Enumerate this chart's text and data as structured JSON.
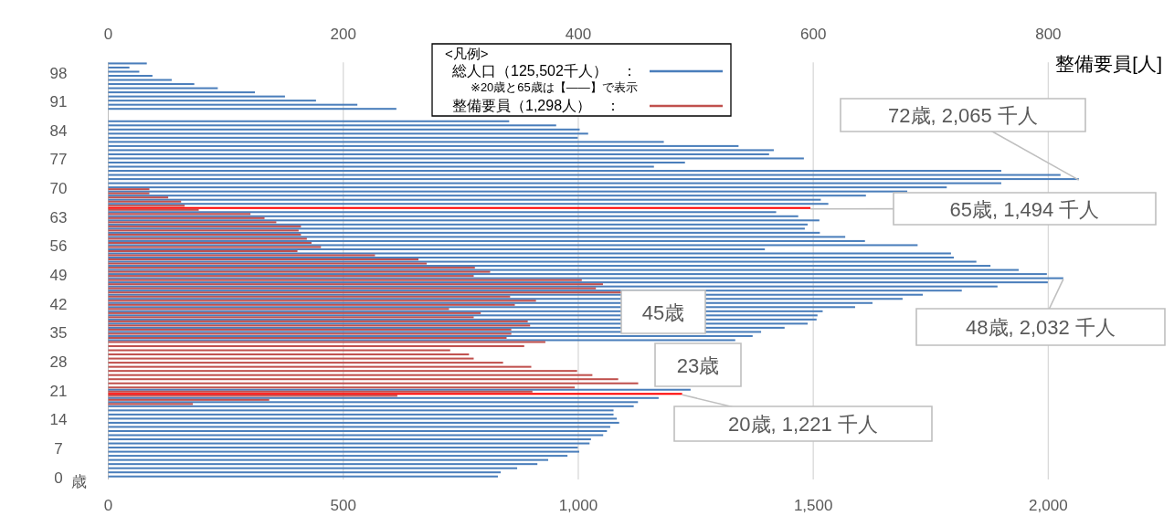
{
  "chart_data": {
    "type": "bar",
    "orientation": "horizontal",
    "x": [
      0,
      1,
      2,
      3,
      4,
      5,
      6,
      7,
      8,
      9,
      10,
      11,
      12,
      13,
      14,
      15,
      16,
      17,
      18,
      19,
      20,
      21,
      22,
      23,
      24,
      25,
      26,
      27,
      28,
      29,
      30,
      31,
      32,
      33,
      34,
      35,
      36,
      37,
      38,
      39,
      40,
      41,
      42,
      43,
      44,
      45,
      46,
      47,
      48,
      49,
      50,
      51,
      52,
      53,
      54,
      55,
      56,
      57,
      58,
      59,
      60,
      61,
      62,
      63,
      64,
      65,
      66,
      67,
      68,
      69,
      70,
      71,
      72,
      73,
      74,
      75,
      76,
      77,
      78,
      79,
      80,
      81,
      82,
      83,
      84,
      85,
      86,
      87,
      88,
      89,
      90,
      91,
      92,
      93,
      94,
      95,
      96,
      97,
      98,
      99,
      100
    ],
    "ylim": [
      -0.5,
      100.5
    ],
    "yticks": [
      0,
      7,
      14,
      21,
      28,
      35,
      42,
      49,
      56,
      63,
      70,
      77,
      84,
      91,
      98
    ],
    "ylabel": "歳",
    "xlim": [
      0,
      2250
    ],
    "xticks": [
      0,
      500,
      {
        "value": 1000,
        "label": "1,000"
      },
      {
        "value": 1500,
        "label": "1,500"
      },
      {
        "value": 2000,
        "label": "2,000"
      }
    ],
    "x2lim": [
      0,
      900
    ],
    "x2ticks": [
      0,
      200,
      400,
      600,
      800
    ],
    "x2label": "整備要員[人]",
    "grid": "x",
    "legend": "top",
    "legend_title": "<凡例>",
    "series": [
      {
        "name": "総人口（125,502千人）　：",
        "color": "#4a7ebb",
        "values": [
          829,
          835,
          870,
          913,
          936,
          977,
          1002,
          999,
          1024,
          1027,
          1053,
          1061,
          1068,
          1087,
          1082,
          1075,
          1075,
          1118,
          1127,
          1171,
          1221,
          1239,
          null,
          null,
          null,
          null,
          null,
          null,
          null,
          null,
          null,
          null,
          null,
          1334,
          1371,
          1389,
          1439,
          1488,
          1507,
          1509,
          1520,
          1589,
          1626,
          1690,
          1733,
          1816,
          1892,
          1999,
          2032,
          1997,
          1937,
          1877,
          1847,
          1799,
          1793,
          1397,
          1722,
          1610,
          1568,
          1514,
          1482,
          1488,
          1513,
          1468,
          1421,
          1494,
          1532,
          1516,
          1612,
          1700,
          1784,
          1900,
          2065,
          2026,
          1900,
          1161,
          1227,
          1480,
          1406,
          1416,
          1341,
          1182,
          999,
          1021,
          1003,
          953,
          853,
          null,
          null,
          613,
          530,
          442,
          376,
          312,
          233,
          183,
          135,
          94,
          66,
          45,
          82
        ],
        "colors": [
          "#4a7ebb",
          "#4a7ebb",
          "#4a7ebb",
          "#4a7ebb",
          "#4a7ebb",
          "#4a7ebb",
          "#4a7ebb",
          "#4a7ebb",
          "#4a7ebb",
          "#4a7ebb",
          "#4a7ebb",
          "#4a7ebb",
          "#4a7ebb",
          "#4a7ebb",
          "#4a7ebb",
          "#4a7ebb",
          "#4a7ebb",
          "#4a7ebb",
          "#4a7ebb",
          "#4a7ebb",
          "#ff0000",
          "#4a7ebb",
          null,
          null,
          null,
          null,
          null,
          null,
          null,
          null,
          null,
          null,
          null,
          "#4a7ebb",
          "#4a7ebb",
          "#4a7ebb",
          "#4a7ebb",
          "#4a7ebb",
          "#4a7ebb",
          "#4a7ebb",
          "#4a7ebb",
          "#4a7ebb",
          "#4a7ebb",
          "#4a7ebb",
          "#4a7ebb",
          "#4a7ebb",
          "#4a7ebb",
          "#4a7ebb",
          "#4a7ebb",
          "#4a7ebb",
          "#4a7ebb",
          "#4a7ebb",
          "#4a7ebb",
          "#4a7ebb",
          "#4a7ebb",
          "#4a7ebb",
          "#4a7ebb",
          "#4a7ebb",
          "#4a7ebb",
          "#4a7ebb",
          "#4a7ebb",
          "#4a7ebb",
          "#4a7ebb",
          "#4a7ebb",
          "#4a7ebb",
          "#ff0000",
          "#4a7ebb",
          "#4a7ebb",
          "#4a7ebb",
          "#4a7ebb",
          "#4a7ebb",
          "#4a7ebb",
          "#4a7ebb",
          "#4a7ebb",
          "#4a7ebb",
          "#4a7ebb",
          "#4a7ebb",
          "#4a7ebb",
          "#4a7ebb",
          "#4a7ebb",
          "#4a7ebb",
          "#4a7ebb",
          "#4a7ebb",
          "#4a7ebb",
          "#4a7ebb",
          "#4a7ebb",
          "#4a7ebb",
          null,
          null,
          "#4a7ebb",
          "#4a7ebb",
          "#4a7ebb",
          "#4a7ebb",
          "#4a7ebb",
          "#4a7ebb",
          "#4a7ebb",
          "#4a7ebb",
          "#4a7ebb",
          "#4a7ebb",
          "#4a7ebb",
          "#4a7ebb"
        ]
      },
      {
        "name": "整備要員（1,298人）　：",
        "color": "#c0504d",
        "axis": "x2",
        "values": [
          null,
          null,
          null,
          null,
          null,
          null,
          null,
          null,
          null,
          null,
          null,
          null,
          null,
          null,
          null,
          null,
          null,
          null,
          72,
          137,
          246,
          361,
          397,
          451,
          434,
          412,
          399,
          360,
          336,
          311,
          307,
          291,
          354,
          372,
          339,
          343,
          343,
          359,
          357,
          311,
          317,
          290,
          346,
          364,
          342,
          438,
          415,
          421,
          403,
          311,
          325,
          312,
          271,
          264,
          227,
          161,
          181,
          173,
          169,
          164,
          162,
          164,
          143,
          133,
          121,
          77,
          65,
          62,
          51,
          35,
          35,
          null,
          null,
          null,
          null,
          null,
          null,
          null,
          null,
          null,
          null,
          null,
          null,
          null,
          null,
          null,
          null,
          null,
          null,
          null,
          null,
          null,
          null,
          null,
          null,
          null,
          null,
          null,
          null,
          null,
          null
        ]
      }
    ],
    "annotations": [
      "※20歳と65歳は【――】で表示",
      {
        "text": "72歳, 2,065 千人",
        "x": 2065,
        "y": 72
      },
      {
        "text": "65歳, 1,494 千人",
        "x": 1494,
        "y": 65
      },
      {
        "text": "45歳",
        "y": 45
      },
      {
        "text": "48歳, 2,032 千人",
        "x": 2032,
        "y": 48
      },
      "23歳",
      {
        "text": "20歳, 1,221 千人",
        "x": 1221,
        "y": 20
      }
    ]
  }
}
